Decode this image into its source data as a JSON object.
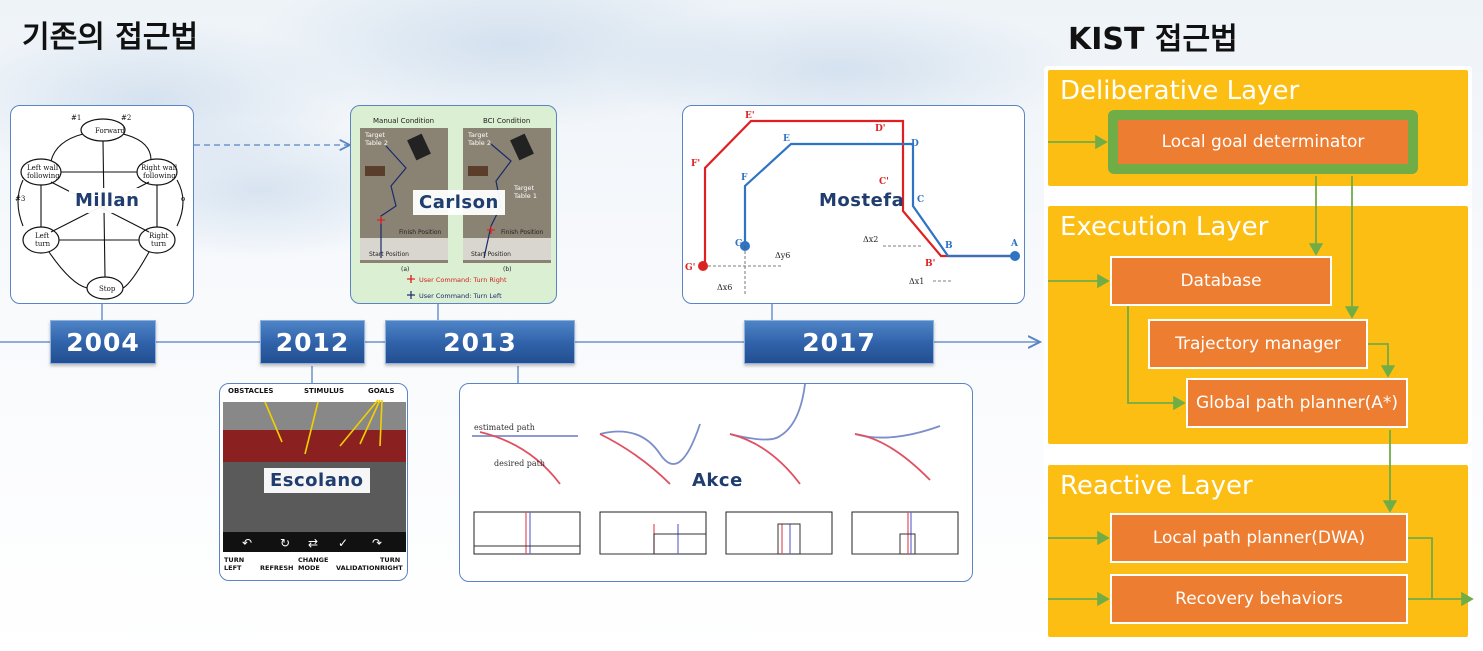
{
  "titles": {
    "left": "기존의 접근법",
    "right": "KIST 접근법"
  },
  "timeline": {
    "years": [
      "2004",
      "2012",
      "2013",
      "2017"
    ]
  },
  "cards": {
    "millan": {
      "label": "Millan",
      "nodes": [
        "Forward",
        "Left wall following",
        "Right wall following",
        "Left turn",
        "Right turn",
        "Stop"
      ],
      "edge_labels": [
        "#1",
        "#2",
        "#3",
        "o"
      ]
    },
    "carlson": {
      "label": "Carlson",
      "panel_titles": [
        "Manual Condition",
        "BCI Condition"
      ],
      "targets": [
        "Target Table 2",
        "Target Table 2",
        "Target Table 1"
      ],
      "finish": "Finish Position",
      "start": "Start Position",
      "subcaptions": [
        "(a)",
        "(b)"
      ],
      "legend": [
        "User Command: Turn Right",
        "User Command: Turn Left"
      ]
    },
    "mostefa": {
      "label": "Mostefa",
      "points": [
        "E'",
        "D'",
        "E",
        "D",
        "F'",
        "F",
        "C",
        "G",
        "G'",
        "B",
        "B'",
        "A",
        "C'"
      ],
      "dims": [
        "Δx2",
        "Δy6",
        "Δx6",
        "Δx1"
      ]
    },
    "escolano": {
      "label": "Escolano",
      "top_labels": [
        "OBSTACLES",
        "STIMULUS",
        "GOALS"
      ],
      "bottom_labels": [
        "TURN LEFT",
        "REFRESH",
        "CHANGE MODE",
        "VALIDATION",
        "TURN RIGHT"
      ]
    },
    "akce": {
      "label": "Akce",
      "path_labels": [
        "estimated path",
        "desired path"
      ]
    }
  },
  "kist": {
    "layers": {
      "deliberative": {
        "title": "Deliberative Layer",
        "boxes": [
          "Local goal determinator"
        ]
      },
      "execution": {
        "title": "Execution Layer",
        "boxes": [
          "Database",
          "Trajectory manager",
          "Global path planner(A*)"
        ]
      },
      "reactive": {
        "title": "Reactive Layer",
        "boxes": [
          "Local path planner(DWA)",
          "Recovery behaviors"
        ]
      }
    }
  },
  "colors": {
    "layer": "#fdbe13",
    "box": "#ed7d31",
    "arrow": "#70ad47",
    "timeline": "#2f61a8"
  }
}
